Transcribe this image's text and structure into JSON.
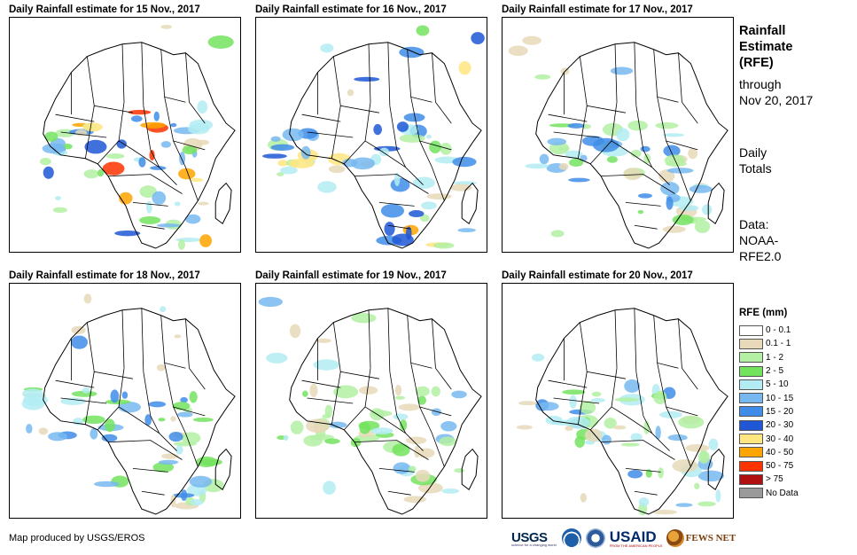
{
  "panels": [
    {
      "title": "Daily Rainfall estimate for 15 Nov., 2017",
      "intensity": 1.0
    },
    {
      "title": "Daily Rainfall estimate for 16 Nov., 2017",
      "intensity": 0.85
    },
    {
      "title": "Daily Rainfall estimate for 17 Nov., 2017",
      "intensity": 0.55
    },
    {
      "title": "Daily Rainfall estimate for 18 Nov., 2017",
      "intensity": 0.6
    },
    {
      "title": "Daily Rainfall estimate for 19 Nov., 2017",
      "intensity": 0.5
    },
    {
      "title": "Daily Rainfall estimate for 20 Nov., 2017",
      "intensity": 0.55
    }
  ],
  "side": {
    "title_line1": "Rainfall",
    "title_line2": "Estimate",
    "title_line3": "(RFE)",
    "through": "through",
    "date": "Nov 20, 2017",
    "daily1": "Daily",
    "daily2": "Totals",
    "data1": "Data:",
    "data2": "NOAA-",
    "data3": "RFE2.0"
  },
  "chart_data": {
    "type": "table",
    "title": "RFE (mm)",
    "legend": [
      {
        "label": "0 - 0.1",
        "color": "#ffffff"
      },
      {
        "label": "0.1 - 1",
        "color": "#e8d9b9"
      },
      {
        "label": "1 - 2",
        "color": "#b3f0a3"
      },
      {
        "label": "2 - 5",
        "color": "#73e35e"
      },
      {
        "label": "5 - 10",
        "color": "#b3ecf2"
      },
      {
        "label": "10 - 15",
        "color": "#77b8f0"
      },
      {
        "label": "15 - 20",
        "color": "#3f8de8"
      },
      {
        "label": "20 - 30",
        "color": "#1f57d6"
      },
      {
        "label": "30 - 40",
        "color": "#ffe680"
      },
      {
        "label": "40 - 50",
        "color": "#ffa500"
      },
      {
        "label": "50 - 75",
        "color": "#ff3300"
      },
      {
        "label": "> 75",
        "color": "#b01010"
      },
      {
        "label": "No Data",
        "color": "#9a9a9a"
      }
    ]
  },
  "credit": "Map produced by USGS/EROS",
  "logos": {
    "usgs": "USGS",
    "usgs_sub": "science for a changing world",
    "noaa": "noaa-logo",
    "dhs": "seal-logo",
    "usaid": "USAID",
    "usaid_sub": "FROM THE AMERICAN PEOPLE",
    "fews": "FEWS NET"
  }
}
